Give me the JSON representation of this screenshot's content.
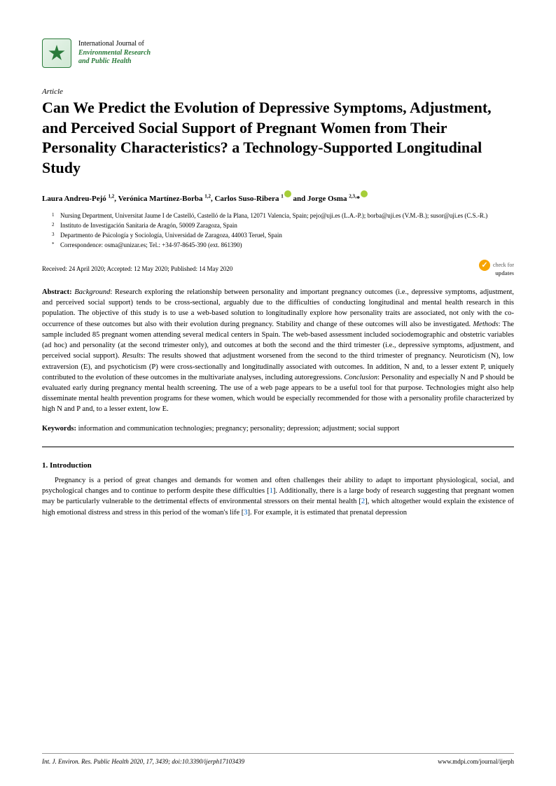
{
  "journal": {
    "line1": "International Journal of",
    "line2": "Environmental Research",
    "line3": "and Public Health"
  },
  "article_label": "Article",
  "title": "Can We Predict the Evolution of Depressive Symptoms, Adjustment, and Perceived Social Support of Pregnant Women from Their Personality Characteristics? a Technology-Supported Longitudinal Study",
  "authors_html": "Laura Andreu-Pejó <span class='sup'>1,2</span>, Verónica Martínez-Borba <span class='sup'>1,2</span>, Carlos Suso-Ribera <span class='sup'>1</span><span class='orcid'></span> and Jorge Osma <span class='sup'>2,3,</span>*<span class='orcid'></span>",
  "affiliations": [
    {
      "num": "1",
      "text": "Nursing Department, Universitat Jaume I de Castelló, Castelló de la Plana, 12071 Valencia, Spain; pejo@uji.es (L.A.-P.); borba@uji.es (V.M.-B.); susor@uji.es (C.S.-R.)"
    },
    {
      "num": "2",
      "text": "Instituto de Investigación Sanitaria de Aragón, 50009 Zaragoza, Spain"
    },
    {
      "num": "3",
      "text": "Departmento de Psicología y Sociología, Universidad de Zaragoza, 44003 Teruel, Spain"
    },
    {
      "num": "*",
      "text": "Correspondence: osma@unizar.es; Tel.: +34-97-8645-390 (ext. 861390)"
    }
  ],
  "dates": "Received: 24 April 2020; Accepted: 12 May 2020; Published: 14 May 2020",
  "check_updates": {
    "line1": "check for",
    "line2": "updates"
  },
  "abstract": {
    "label": "Abstract:",
    "text": " Background: Research exploring the relationship between personality and important pregnancy outcomes (i.e., depressive symptoms, adjustment, and perceived social support) tends to be cross-sectional, arguably due to the difficulties of conducting longitudinal and mental health research in this population. The objective of this study is to use a web-based solution to longitudinally explore how personality traits are associated, not only with the co-occurrence of these outcomes but also with their evolution during pregnancy. Stability and change of these outcomes will also be investigated. Methods: The sample included 85 pregnant women attending several medical centers in Spain. The web-based assessment included sociodemographic and obstetric variables (ad hoc) and personality (at the second trimester only), and outcomes at both the second and the third trimester (i.e., depressive symptoms, adjustment, and perceived social support). Results: The results showed that adjustment worsened from the second to the third trimester of pregnancy. Neuroticism (N), low extraversion (E), and psychoticism (P) were cross-sectionally and longitudinally associated with outcomes. In addition, N and, to a lesser extent P, uniquely contributed to the evolution of these outcomes in the multivariate analyses, including autoregressions. Conclusion: Personality and especially N and P should be evaluated early during pregnancy mental health screening. The use of a web page appears to be a useful tool for that purpose. Technologies might also help disseminate mental health prevention programs for these women, which would be especially recommended for those with a personality profile characterized by high N and P and, to a lesser extent, low E."
  },
  "keywords": {
    "label": "Keywords:",
    "text": " information and communication technologies; pregnancy; personality; depression; adjustment; social support"
  },
  "section_heading": "1. Introduction",
  "intro_text": "Pregnancy is a period of great changes and demands for women and often challenges their ability to adapt to important physiological, social, and psychological changes and to continue to perform despite these difficulties [1]. Additionally, there is a large body of research suggesting that pregnant women may be particularly vulnerable to the detrimental effects of environmental stressors on their mental health [2], which altogether would explain the existence of high emotional distress and stress in this period of the woman's life [3]. For example, it is estimated that prenatal depression",
  "footer": {
    "left": "Int. J. Environ. Res. Public Health 2020, 17, 3439; doi:10.3390/ijerph17103439",
    "right": "www.mdpi.com/journal/ijerph"
  },
  "colors": {
    "link": "#0066cc",
    "green": "#2a7a3a",
    "orange": "#f7a400"
  }
}
